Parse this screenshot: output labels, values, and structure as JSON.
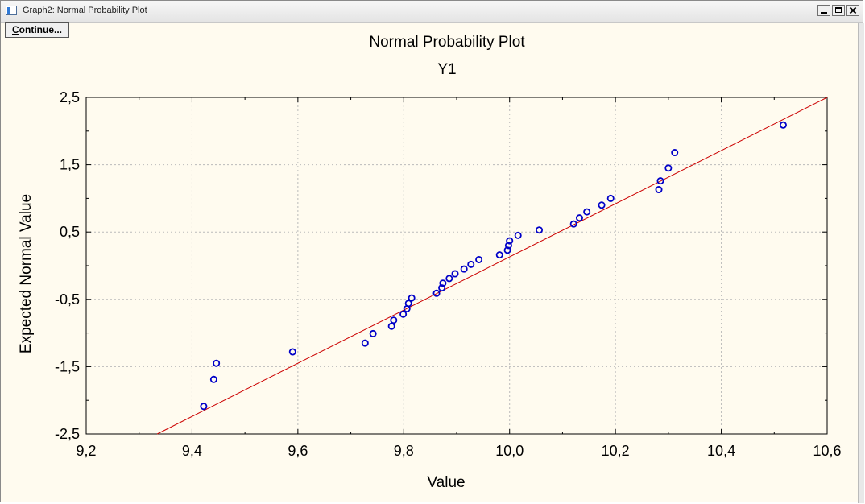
{
  "window": {
    "title": "Graph2: Normal Probability Plot",
    "continue_label": "Continue..."
  },
  "colors": {
    "background": "#fffbef",
    "points": "#0000c8",
    "fit_line": "#cc0000",
    "grid": "#bbbbbb"
  },
  "chart_data": {
    "type": "scatter",
    "title": "Normal Probability Plot",
    "subtitle": "Y1",
    "xlabel": "Value",
    "ylabel": "Expected Normal Value",
    "xlim": [
      9.2,
      10.6
    ],
    "ylim": [
      -2.5,
      2.5
    ],
    "x_ticks": [
      "9,2",
      "9,4",
      "9,6",
      "9,8",
      "10,0",
      "10,2",
      "10,4",
      "10,6"
    ],
    "y_ticks": [
      "2,5",
      "1,5",
      "0,5",
      "-0,5",
      "-1,5",
      "-2,5"
    ],
    "grid": true,
    "fit_line": {
      "from": [
        9.2,
        -3.03
      ],
      "to": [
        10.6,
        2.5
      ]
    },
    "points": [
      [
        9.422,
        -2.09
      ],
      [
        9.441,
        -1.69
      ],
      [
        9.446,
        -1.45
      ],
      [
        9.59,
        -1.28
      ],
      [
        9.727,
        -1.15
      ],
      [
        9.742,
        -1.01
      ],
      [
        9.777,
        -0.9
      ],
      [
        9.781,
        -0.81
      ],
      [
        9.799,
        -0.72
      ],
      [
        9.806,
        -0.64
      ],
      [
        9.809,
        -0.56
      ],
      [
        9.815,
        -0.48
      ],
      [
        9.862,
        -0.41
      ],
      [
        9.872,
        -0.33
      ],
      [
        9.874,
        -0.26
      ],
      [
        9.886,
        -0.19
      ],
      [
        9.897,
        -0.12
      ],
      [
        9.914,
        -0.05
      ],
      [
        9.927,
        0.02
      ],
      [
        9.942,
        0.09
      ],
      [
        9.981,
        0.16
      ],
      [
        9.996,
        0.23
      ],
      [
        9.998,
        0.3
      ],
      [
        10.0,
        0.37
      ],
      [
        10.016,
        0.45
      ],
      [
        10.056,
        0.53
      ],
      [
        10.121,
        0.62
      ],
      [
        10.132,
        0.71
      ],
      [
        10.146,
        0.8
      ],
      [
        10.174,
        0.9
      ],
      [
        10.191,
        1.0
      ],
      [
        10.282,
        1.13
      ],
      [
        10.285,
        1.26
      ],
      [
        10.3,
        1.45
      ],
      [
        10.312,
        1.68
      ],
      [
        10.517,
        2.09
      ]
    ]
  }
}
